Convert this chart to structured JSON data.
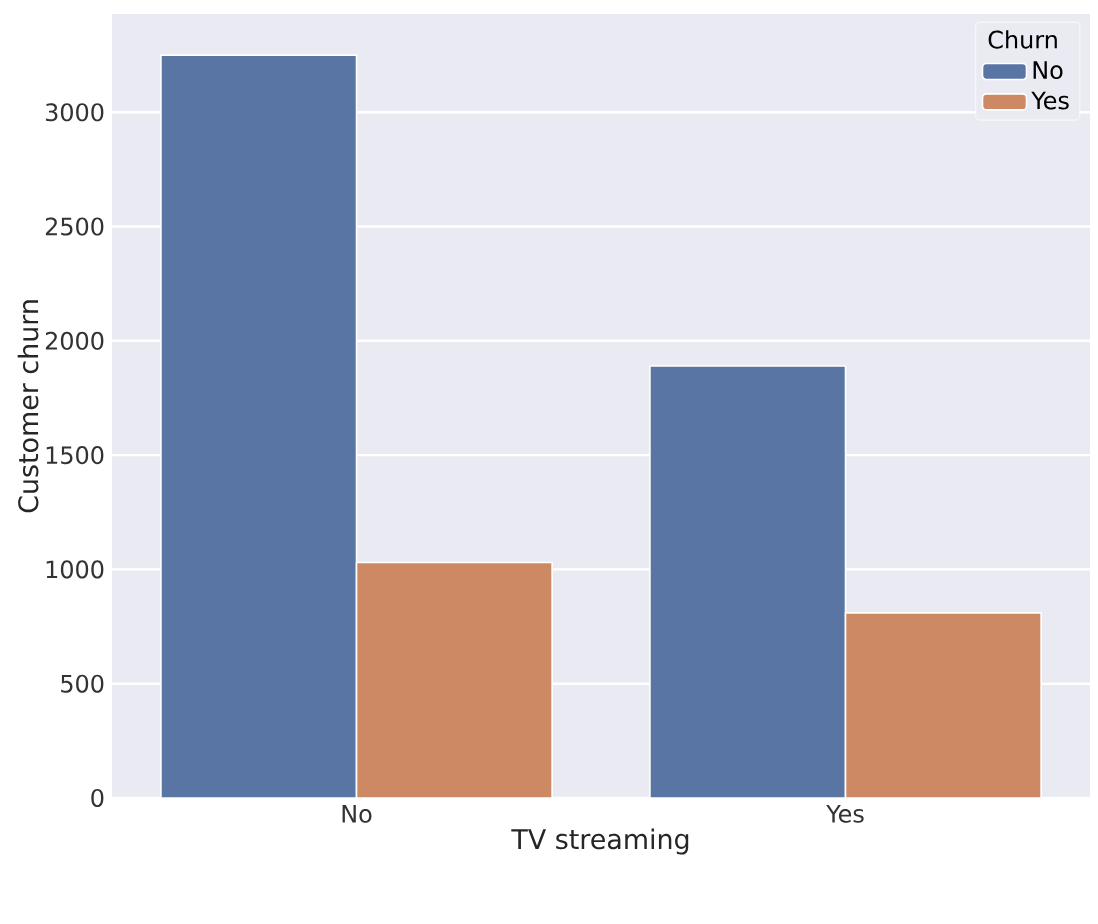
{
  "chart_data": {
    "type": "bar",
    "xlabel": "TV streaming",
    "ylabel": "Customer churn",
    "legend_title": "Churn",
    "categories": [
      "No",
      "Yes"
    ],
    "series": [
      {
        "name": "No",
        "color": "#5975a4",
        "values": [
          3250,
          1890
        ]
      },
      {
        "name": "Yes",
        "color": "#cc8963",
        "values": [
          1030,
          810
        ]
      }
    ],
    "ylim": [
      0,
      3430
    ],
    "yticks": [
      0,
      500,
      1000,
      1500,
      2000,
      2500,
      3000
    ],
    "grid": "y",
    "legend": "top right"
  }
}
